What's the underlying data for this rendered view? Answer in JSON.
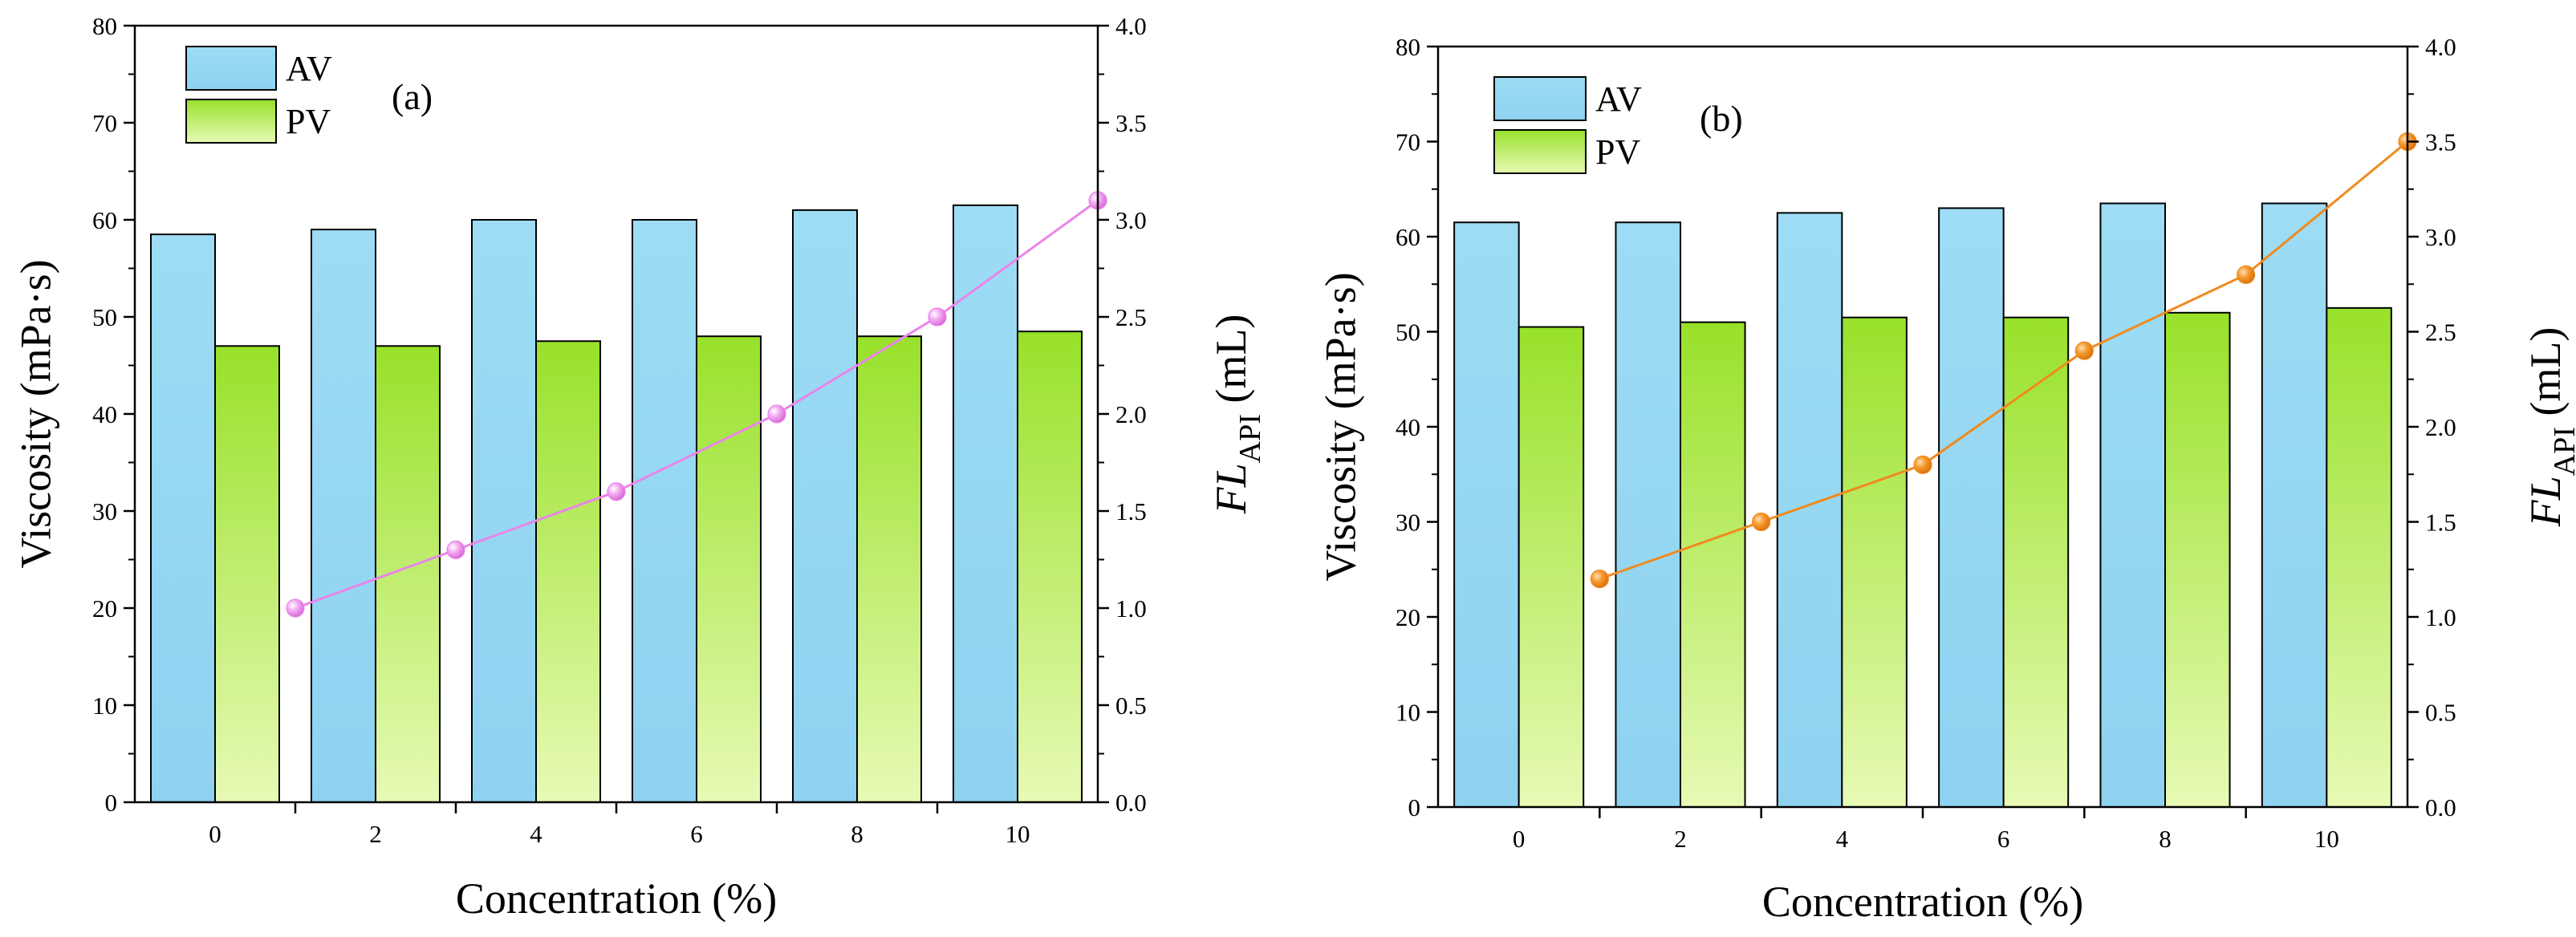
{
  "colors": {
    "av_top": "#9ddcf4",
    "av_bottom": "#8fd2f0",
    "pv_top": "#98e12a",
    "pv_bottom": "#e7fab5",
    "line_a": "#ea84ea",
    "line_b": "#f08a1e",
    "axis": "#000000"
  },
  "chart_data": [
    {
      "type": "bar",
      "panel_label": "(a)",
      "categories": [
        "0",
        "2",
        "4",
        "6",
        "8",
        "10"
      ],
      "series": [
        {
          "name": "AV",
          "axis": "left",
          "values": [
            58.5,
            59,
            60,
            60,
            61,
            61.5
          ]
        },
        {
          "name": "PV",
          "axis": "left",
          "values": [
            47,
            47,
            47.5,
            48,
            48,
            48.5
          ]
        }
      ],
      "line_series": {
        "name": "FL API",
        "axis": "right",
        "values": [
          1.0,
          1.3,
          1.6,
          2.0,
          2.5,
          3.1
        ]
      },
      "xlabel": "Concentration (%)",
      "ylabel": "Viscosity (mPa·s)",
      "y2label_main": "FL",
      "y2label_sub": "API",
      "y2label_unit": " (mL)",
      "ylim": [
        0,
        80
      ],
      "y2lim": [
        0,
        4
      ],
      "yticks": [
        "0",
        "10",
        "20",
        "30",
        "40",
        "50",
        "60",
        "70",
        "80"
      ],
      "y2ticks": [
        "0.0",
        "0.5",
        "1.0",
        "1.5",
        "2.0",
        "2.5",
        "3.0",
        "3.5",
        "4.0"
      ],
      "legend": [
        "AV",
        "PV"
      ],
      "legend_position": "top-left"
    },
    {
      "type": "bar",
      "panel_label": "(b)",
      "categories": [
        "0",
        "2",
        "4",
        "6",
        "8",
        "10"
      ],
      "series": [
        {
          "name": "AV",
          "axis": "left",
          "values": [
            61.5,
            61.5,
            62.5,
            63,
            63.5,
            63.5
          ]
        },
        {
          "name": "PV",
          "axis": "left",
          "values": [
            50.5,
            51,
            51.5,
            51.5,
            52,
            52.5
          ]
        }
      ],
      "line_series": {
        "name": "FL API",
        "axis": "right",
        "values": [
          1.2,
          1.5,
          1.8,
          2.4,
          2.8,
          3.5
        ]
      },
      "xlabel": "Concentration (%)",
      "ylabel": "Viscosity (mPa·s)",
      "y2label_main": "FL",
      "y2label_sub": "API",
      "y2label_unit": " (mL)",
      "ylim": [
        0,
        80
      ],
      "y2lim": [
        0,
        4
      ],
      "yticks": [
        "0",
        "10",
        "20",
        "30",
        "40",
        "50",
        "60",
        "70",
        "80"
      ],
      "y2ticks": [
        "0.0",
        "0.5",
        "1.0",
        "1.5",
        "2.0",
        "2.5",
        "3.0",
        "3.5",
        "4.0"
      ],
      "legend": [
        "AV",
        "PV"
      ],
      "legend_position": "top-left"
    }
  ]
}
